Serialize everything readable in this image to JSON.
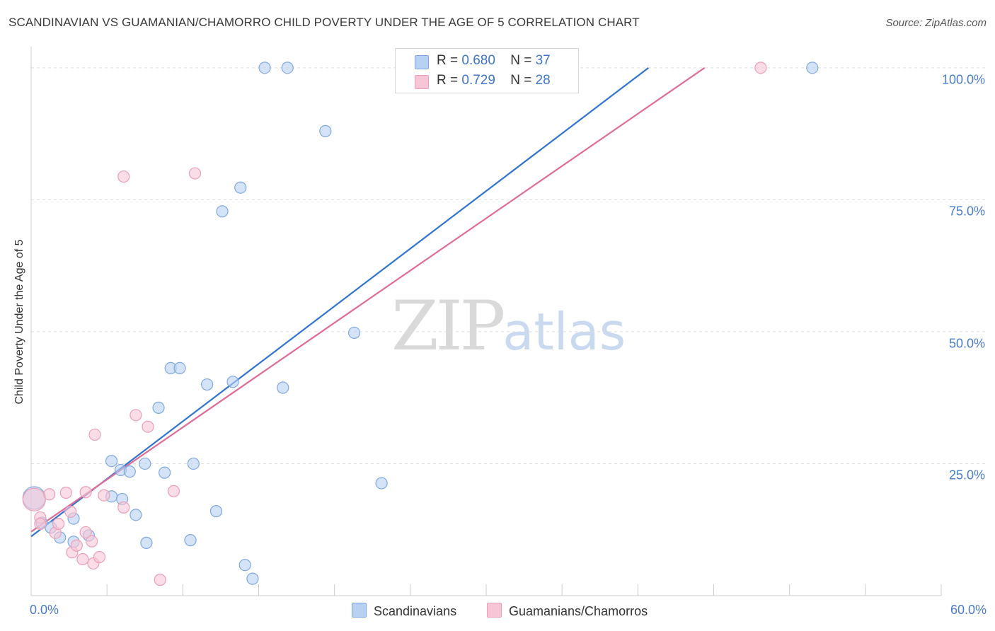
{
  "header": {
    "title": "SCANDINAVIAN VS GUAMANIAN/CHAMORRO CHILD POVERTY UNDER THE AGE OF 5 CORRELATION CHART",
    "source": "Source: ZipAtlas.com"
  },
  "watermark": {
    "zip": "ZIP",
    "atlas": "atlas"
  },
  "legend": {
    "rows": [
      {
        "r_label": "R =",
        "r_value": "0.680",
        "n_label": "N =",
        "n_value": "37"
      },
      {
        "r_label": "R =",
        "r_value": "0.729",
        "n_label": "N =",
        "n_value": "28"
      }
    ]
  },
  "colors": {
    "scandinavians_fill": "#b8d0f2",
    "scandinavians_stroke": "#7fa8e0",
    "scandinavians_line": "#2f74d0",
    "guamanians_fill": "#f7c6d6",
    "guamanians_stroke": "#ec9fb9",
    "guamanians_line": "#e06b97",
    "tick_label": "#4a7cc9",
    "grid": "#dddddd"
  },
  "chart_data": {
    "type": "scatter",
    "title": "SCANDINAVIAN VS GUAMANIAN/CHAMORRO CHILD POVERTY UNDER THE AGE OF 5 CORRELATION CHART",
    "xlabel": "",
    "ylabel": "Child Poverty Under the Age of 5",
    "xlim": [
      0,
      60
    ],
    "ylim": [
      0,
      104
    ],
    "x_tick_labels": [
      {
        "value": 0,
        "label": "0.0%"
      },
      {
        "value": 60,
        "label": "60.0%"
      }
    ],
    "y_tick_labels": [
      {
        "value": 25,
        "label": "25.0%"
      },
      {
        "value": 50,
        "label": "50.0%"
      },
      {
        "value": 75,
        "label": "75.0%"
      },
      {
        "value": 100,
        "label": "100.0%"
      }
    ],
    "grid": true,
    "legend_position": "top-center",
    "series": [
      {
        "name": "Scandinavians",
        "points": [
          [
            0.2,
            18.5,
            "big"
          ],
          [
            0.7,
            13.8
          ],
          [
            1.3,
            12.9
          ],
          [
            1.9,
            11.0
          ],
          [
            2.8,
            14.6
          ],
          [
            3.8,
            11.4
          ],
          [
            2.8,
            10.2
          ],
          [
            5.3,
            18.8
          ],
          [
            6.0,
            18.3
          ],
          [
            5.3,
            25.5
          ],
          [
            5.9,
            23.8
          ],
          [
            6.5,
            23.5
          ],
          [
            6.9,
            15.3
          ],
          [
            7.6,
            10.0
          ],
          [
            7.5,
            25.0
          ],
          [
            8.4,
            35.6
          ],
          [
            8.8,
            23.3
          ],
          [
            9.2,
            43.1
          ],
          [
            9.8,
            43.1
          ],
          [
            10.5,
            10.5
          ],
          [
            10.7,
            25.0
          ],
          [
            11.6,
            40.0
          ],
          [
            12.2,
            16.0
          ],
          [
            12.6,
            72.8
          ],
          [
            13.3,
            40.5
          ],
          [
            13.8,
            77.3
          ],
          [
            14.1,
            5.8
          ],
          [
            14.6,
            3.2
          ],
          [
            15.4,
            100.0
          ],
          [
            16.9,
            100.0
          ],
          [
            16.6,
            39.4
          ],
          [
            19.4,
            88.0
          ],
          [
            21.3,
            49.8
          ],
          [
            23.1,
            21.3
          ],
          [
            51.5,
            100.0
          ]
        ]
      },
      {
        "name": "Guamanians/Chamorros",
        "points": [
          [
            0.2,
            18.2,
            "big"
          ],
          [
            0.6,
            14.8
          ],
          [
            0.6,
            13.6
          ],
          [
            1.2,
            19.2
          ],
          [
            1.6,
            11.9
          ],
          [
            1.8,
            13.6
          ],
          [
            2.3,
            19.5
          ],
          [
            2.6,
            15.9
          ],
          [
            2.7,
            8.2
          ],
          [
            3.0,
            9.5
          ],
          [
            3.4,
            6.9
          ],
          [
            3.6,
            12.0
          ],
          [
            3.6,
            19.6
          ],
          [
            4.0,
            10.3
          ],
          [
            4.1,
            6.1
          ],
          [
            4.2,
            30.5
          ],
          [
            4.5,
            7.3
          ],
          [
            4.8,
            19.0
          ],
          [
            6.1,
            79.4
          ],
          [
            6.1,
            16.7
          ],
          [
            6.9,
            34.2
          ],
          [
            7.7,
            32.0
          ],
          [
            8.5,
            3.0
          ],
          [
            9.4,
            19.8
          ],
          [
            10.8,
            80.0
          ],
          [
            48.1,
            100.0
          ]
        ]
      }
    ],
    "regression_lines": [
      {
        "series": "Scandinavians",
        "x": [
          0,
          40.7
        ],
        "y": [
          11.2,
          100.0
        ]
      },
      {
        "series": "Guamanians/Chamorros",
        "x": [
          0,
          44.4
        ],
        "y": [
          12.1,
          100.0
        ]
      }
    ]
  },
  "bottom_legend": {
    "items": [
      "Scandinavians",
      "Guamanians/Chamorros"
    ]
  }
}
